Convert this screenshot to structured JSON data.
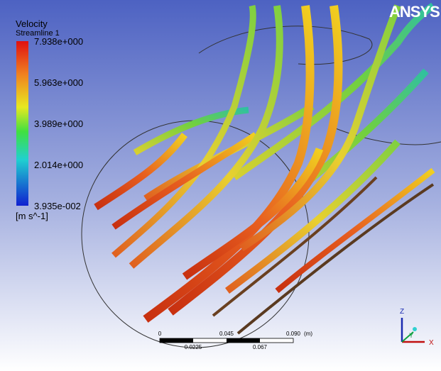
{
  "legend": {
    "title": "Velocity",
    "subtitle": "Streamline 1",
    "labels": [
      "7.938e+000",
      "5.963e+000",
      "3.989e+000",
      "2.014e+000",
      "3.935e-002"
    ],
    "unit": "[m s^-1]"
  },
  "logo": "ANSYS",
  "scale_bar": {
    "top_labels": [
      "0",
      "0.045",
      "0.090"
    ],
    "bottom_labels": [
      "0.0225",
      "0.067"
    ],
    "unit": "(m)"
  },
  "axes": {
    "z": "Z",
    "y": "Y",
    "x": "X"
  }
}
